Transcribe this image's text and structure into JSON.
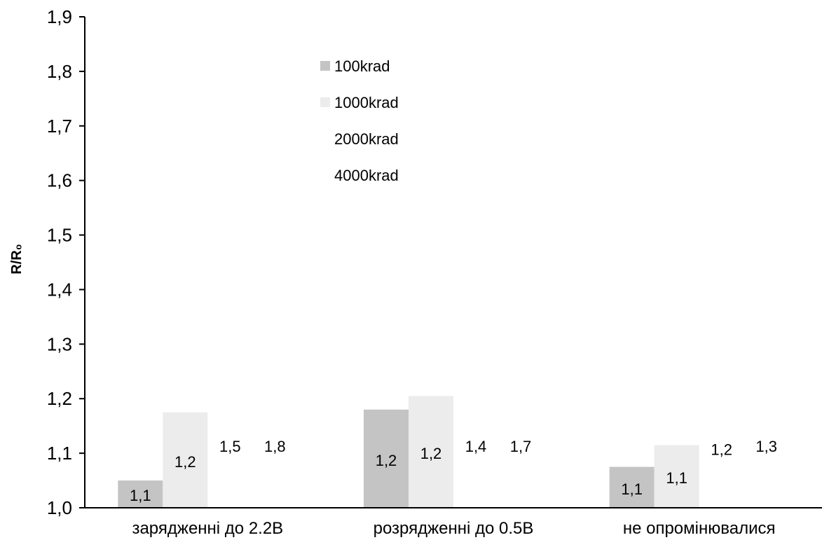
{
  "chart_data": {
    "type": "bar",
    "title": "",
    "xlabel": "",
    "ylabel": "R/R₀",
    "ylim": [
      1.0,
      1.9
    ],
    "yticks": [
      1.0,
      1.1,
      1.2,
      1.3,
      1.4,
      1.5,
      1.6,
      1.7,
      1.8,
      1.9
    ],
    "ytick_labels": [
      "1,0",
      "1,1",
      "1,2",
      "1,3",
      "1,4",
      "1,5",
      "1,6",
      "1,7",
      "1,8",
      "1,9"
    ],
    "grid": false,
    "legend_position": "top-center",
    "categories": [
      "зарядженні до 2.2В",
      "розрядженні до 0.5В",
      "не опромінювалися"
    ],
    "series": [
      {
        "name": "100krad",
        "color": "#c4c4c4",
        "values": [
          1.05,
          1.18,
          1.075
        ],
        "labels": [
          "1,1",
          "1,2",
          "1,1"
        ]
      },
      {
        "name": "1000krad",
        "color": "#ececec",
        "values": [
          1.175,
          1.205,
          1.115
        ],
        "labels": [
          "1,2",
          "1,2",
          "1,1"
        ]
      },
      {
        "name": "2000krad",
        "color": "#ffffff",
        "values": [
          1.45,
          1.41,
          1.22
        ],
        "labels": [
          "1,5",
          "1,4",
          "1,2"
        ]
      },
      {
        "name": "4000krad",
        "color": "#ffffff",
        "values": [
          1.79,
          1.72,
          1.3
        ],
        "labels": [
          "1,8",
          "1,7",
          "1,3"
        ]
      }
    ]
  }
}
